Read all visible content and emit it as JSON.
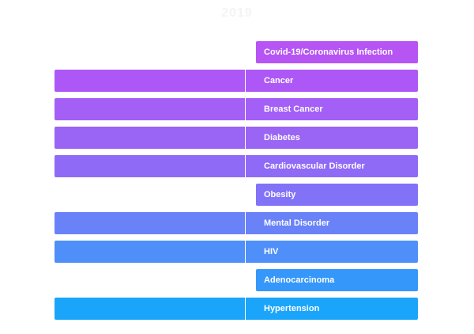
{
  "chart_data": {
    "type": "bar",
    "title": "2019",
    "orientation": "horizontal",
    "categories": [
      "Covid-19/Coronavirus Infection",
      "Cancer",
      "Breast Cancer",
      "Diabetes",
      "Cardiovascular Disorder",
      "Obesity",
      "Mental Disorder",
      "HIV",
      "Adenocarcinoma",
      "Hypertension"
    ],
    "series": [
      {
        "values": [
          0,
          1,
          1,
          1,
          1,
          0,
          1,
          1,
          0,
          1
        ]
      }
    ],
    "colors": [
      "#b654f4",
      "#ad58f6",
      "#a35ff6",
      "#9a64f5",
      "#8f6af7",
      "#8272f7",
      "#6a82f8",
      "#4f8ff9",
      "#3697fa",
      "#1aa5fb"
    ],
    "grid": false,
    "legend": "none"
  }
}
